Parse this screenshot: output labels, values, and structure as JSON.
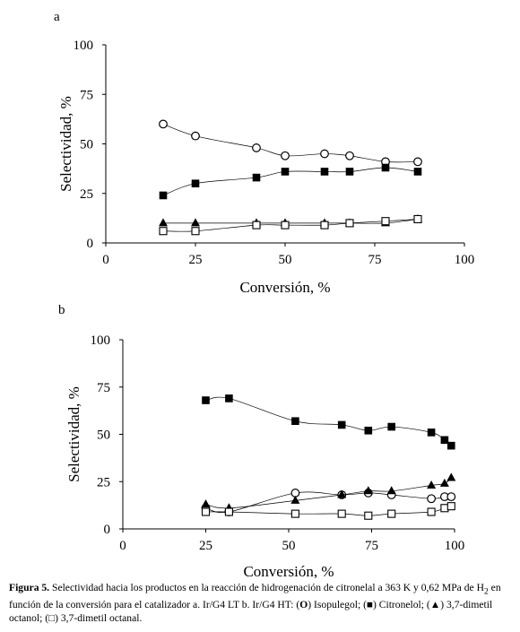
{
  "chart_data": [
    {
      "panel": "a",
      "type": "line",
      "xlabel": "Conversión, %",
      "ylabel": "Selectividad, %",
      "xlim": [
        0,
        100
      ],
      "ylim": [
        0,
        100
      ],
      "xticks": [
        "0",
        "25",
        "50",
        "75",
        "100"
      ],
      "yticks": [
        "0",
        "25",
        "50",
        "75",
        "100"
      ],
      "grid": false,
      "series": [
        {
          "name": "Isopulegol",
          "marker": "open-circle",
          "x": [
            16,
            25,
            42,
            50,
            61,
            68,
            78,
            87
          ],
          "y": [
            60,
            54,
            48,
            44,
            45,
            44,
            41,
            41
          ]
        },
        {
          "name": "Citronelol",
          "marker": "filled-square",
          "x": [
            16,
            25,
            42,
            50,
            61,
            68,
            78,
            87
          ],
          "y": [
            24,
            30,
            33,
            36,
            36,
            36,
            38,
            36
          ]
        },
        {
          "name": "3,7-dimetil octanol",
          "marker": "filled-triangle",
          "x": [
            16,
            25,
            42,
            50,
            61,
            68,
            78,
            87
          ],
          "y": [
            10,
            10,
            10,
            10,
            10,
            10,
            10,
            12
          ]
        },
        {
          "name": "3,7-dimetil octanal",
          "marker": "open-square",
          "x": [
            16,
            25,
            42,
            50,
            61,
            68,
            78,
            87
          ],
          "y": [
            6,
            6,
            9,
            9,
            9,
            10,
            11,
            12
          ]
        }
      ]
    },
    {
      "panel": "b",
      "type": "line",
      "xlabel": "Conversión, %",
      "ylabel": "Selectividad, %",
      "xlim": [
        0,
        100
      ],
      "ylim": [
        0,
        100
      ],
      "xticks": [
        "0",
        "25",
        "50",
        "75",
        "100"
      ],
      "yticks": [
        "0",
        "25",
        "50",
        "75",
        "100"
      ],
      "grid": false,
      "series": [
        {
          "name": "Isopulegol",
          "marker": "open-circle",
          "x": [
            25,
            32,
            52,
            66,
            74,
            81,
            93,
            97,
            99
          ],
          "y": [
            11,
            9,
            19,
            18,
            19,
            18,
            16,
            17,
            17
          ]
        },
        {
          "name": "Citronelol",
          "marker": "filled-square",
          "x": [
            25,
            32,
            52,
            66,
            74,
            81,
            93,
            97,
            99
          ],
          "y": [
            68,
            69,
            57,
            55,
            52,
            54,
            51,
            47,
            44
          ]
        },
        {
          "name": "3,7-dimetil octanol",
          "marker": "filled-triangle",
          "x": [
            25,
            32,
            52,
            66,
            74,
            81,
            93,
            97,
            99
          ],
          "y": [
            13,
            11,
            15,
            18,
            20,
            20,
            23,
            24,
            27
          ]
        },
        {
          "name": "3,7-dimetil octanal",
          "marker": "open-square",
          "x": [
            25,
            32,
            52,
            66,
            74,
            81,
            93,
            97,
            99
          ],
          "y": [
            9,
            9,
            8,
            8,
            7,
            8,
            9,
            11,
            12
          ]
        }
      ]
    }
  ],
  "caption": {
    "label": "Figura 5.",
    "text_part1": " Selectividad hacia los productos en la reacción de hidrogenación de citronelal a 363 K y 0,62 MPa de H",
    "subscript": "2",
    "text_part2": " en función de la conversión para el catalizador a. Ir/G4 LT b. Ir/G4 HT: (",
    "sym_circle": "O",
    "text_isopulegol": ") Isopulegol; (",
    "sym_square": "■",
    "text_citronelol": ") Citronelol; (",
    "sym_triangle": "▲",
    "text_octanol": ") 3,7-dimetil octanol; (",
    "sym_open_square": "□",
    "text_octanal": ") 3,7-dimetil octanal."
  }
}
